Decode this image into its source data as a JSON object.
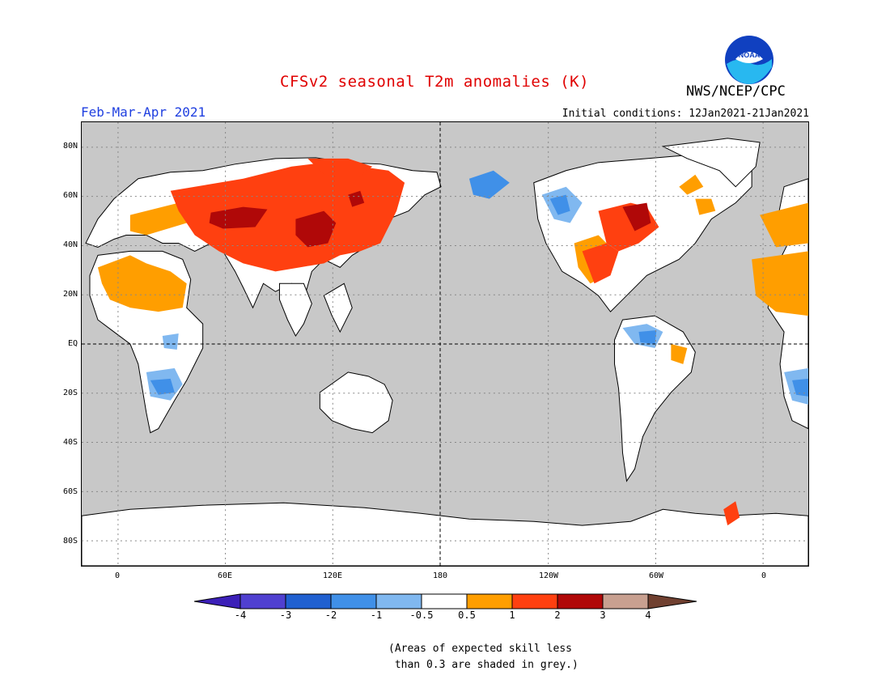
{
  "header": {
    "title": "CFSv2 seasonal T2m anomalies (K)",
    "period": "Feb-Mar-Apr 2021",
    "initial_conditions": "Initial conditions: 12Jan2021-21Jan2021",
    "agency": "NWS/NCEP/CPC",
    "logo_text": "NOAA",
    "title_color": "#e00000",
    "period_color": "#2040e0"
  },
  "axes": {
    "lat_labels": [
      "80N",
      "60N",
      "40N",
      "20N",
      "EQ",
      "20S",
      "40S",
      "60S",
      "80S"
    ],
    "lon_labels": [
      "0",
      "60E",
      "120E",
      "180",
      "120W",
      "60W",
      "0"
    ]
  },
  "colorbar": {
    "ticks": [
      "-4",
      "-3",
      "-2",
      "-1",
      "-0.5",
      "0.5",
      "1",
      "2",
      "3",
      "4"
    ],
    "colors": [
      "#3c20b8",
      "#5040d0",
      "#2060d0",
      "#4090e8",
      "#80b8f0",
      "#ffffff",
      "#ff9e00",
      "#ff4010",
      "#b00808",
      "#c8a090",
      "#704030"
    ]
  },
  "map_colors": {
    "ocean_grey": "#c8c8c8",
    "land_white": "#ffffff"
  },
  "note": {
    "line1": "(Areas of expected skill less",
    "line2": " than 0.3 are shaded in grey.)"
  }
}
